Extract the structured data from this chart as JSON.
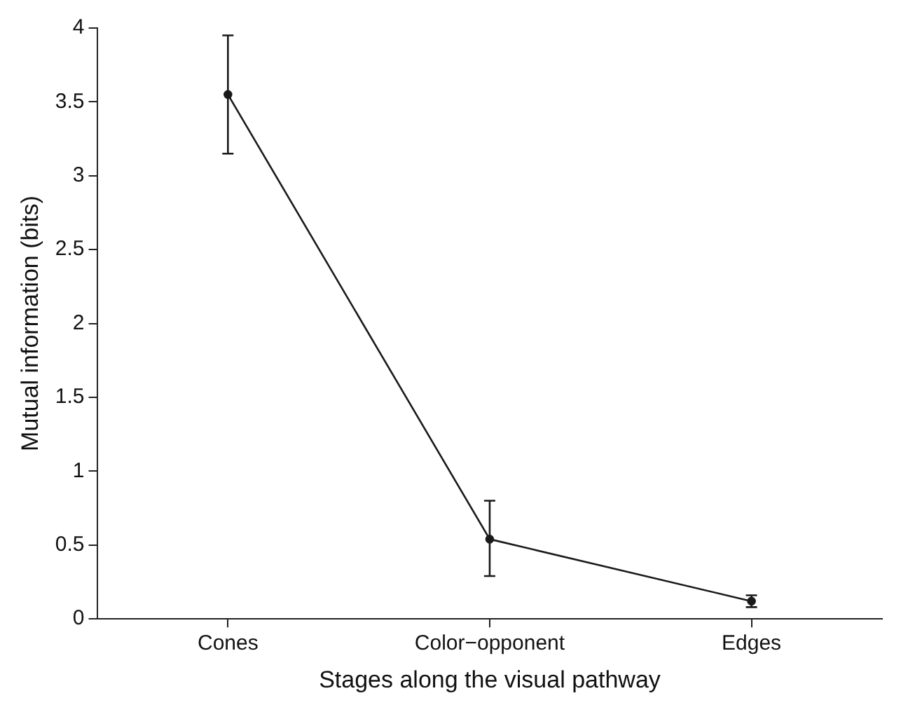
{
  "chart_data": {
    "type": "line",
    "xlabel": "Stages along the visual pathway",
    "ylabel": "Mutual information (bits)",
    "categories": [
      "Cones",
      "Color−opponent",
      "Edges"
    ],
    "series": [
      {
        "color": "#1a1a1a",
        "values": [
          3.55,
          0.54,
          0.12
        ],
        "errors": [
          [
            3.15,
            3.95
          ],
          [
            0.29,
            0.8
          ],
          [
            0.08,
            0.16
          ]
        ]
      }
    ],
    "ylim": [
      0,
      4
    ],
    "yticks": [
      0,
      0.5,
      1,
      1.5,
      2,
      2.5,
      3,
      3.5,
      4
    ],
    "grid": false,
    "legend": false,
    "marker": "circle",
    "line_style": "solid"
  }
}
